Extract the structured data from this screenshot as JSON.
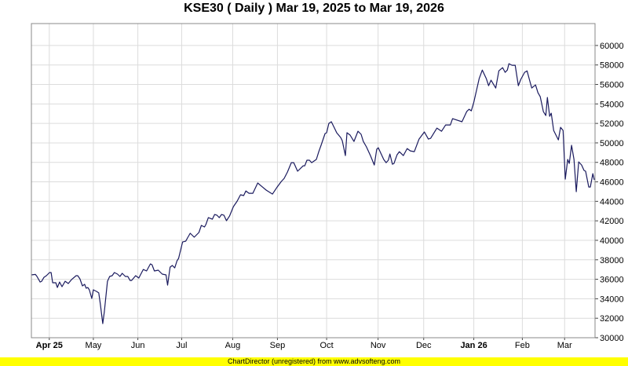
{
  "footer": "ChartDirector (unregistered) from www.advsofteng.com",
  "chart_data": {
    "type": "line",
    "title": "KSE30 ( Daily ) Mar 19, 2025 to Mar 19, 2026",
    "xlabel": "",
    "ylabel": "",
    "x_unit": "trading session index",
    "xlim": [
      0,
      252
    ],
    "ylim": [
      30000,
      62250
    ],
    "y_ticks": [
      30000,
      32000,
      34000,
      36000,
      38000,
      40000,
      42000,
      44000,
      46000,
      48000,
      50000,
      52000,
      54000,
      56000,
      58000,
      60000
    ],
    "y_axis_side": "right",
    "grid": true,
    "line_color": "#1a1a5e",
    "x_ticks": [
      {
        "t": 8,
        "label": "Apr 25",
        "bold": true
      },
      {
        "t": 27.7,
        "label": "May",
        "bold": false
      },
      {
        "t": 47.6,
        "label": "Jun",
        "bold": false
      },
      {
        "t": 67.2,
        "label": "Jul",
        "bold": false
      },
      {
        "t": 90,
        "label": "Aug",
        "bold": false
      },
      {
        "t": 110,
        "label": "Sep",
        "bold": false
      },
      {
        "t": 132,
        "label": "Oct",
        "bold": false
      },
      {
        "t": 155,
        "label": "Nov",
        "bold": false
      },
      {
        "t": 175.4,
        "label": "Dec",
        "bold": false
      },
      {
        "t": 197.8,
        "label": "Jan 26",
        "bold": true
      },
      {
        "t": 219.5,
        "label": "Feb",
        "bold": false
      },
      {
        "t": 238.4,
        "label": "Mar",
        "bold": false
      }
    ],
    "series": [
      {
        "name": "KSE30",
        "points": [
          [
            0,
            36450
          ],
          [
            1.8,
            36500
          ],
          [
            2.5,
            36290
          ],
          [
            3.9,
            35720
          ],
          [
            4.6,
            35800
          ],
          [
            5.6,
            36200
          ],
          [
            6.7,
            36370
          ],
          [
            8.1,
            36690
          ],
          [
            8.8,
            36690
          ],
          [
            9.5,
            35640
          ],
          [
            10.9,
            35640
          ],
          [
            11.6,
            35160
          ],
          [
            12.6,
            35720
          ],
          [
            13.7,
            35240
          ],
          [
            15.1,
            35800
          ],
          [
            16.5,
            35560
          ],
          [
            17.9,
            35960
          ],
          [
            20,
            36370
          ],
          [
            20.7,
            36370
          ],
          [
            21.7,
            36050
          ],
          [
            22.8,
            35320
          ],
          [
            23.8,
            35480
          ],
          [
            24.5,
            35080
          ],
          [
            25.2,
            35160
          ],
          [
            25.9,
            34920
          ],
          [
            27,
            34030
          ],
          [
            27.7,
            34920
          ],
          [
            29.1,
            34760
          ],
          [
            30.1,
            34600
          ],
          [
            30.8,
            33470
          ],
          [
            31.9,
            31450
          ],
          [
            32.6,
            32660
          ],
          [
            34,
            35800
          ],
          [
            35,
            36290
          ],
          [
            36.1,
            36370
          ],
          [
            37.1,
            36690
          ],
          [
            38.5,
            36530
          ],
          [
            39.6,
            36290
          ],
          [
            40.6,
            36610
          ],
          [
            42,
            36290
          ],
          [
            43.1,
            36290
          ],
          [
            44.1,
            35880
          ],
          [
            44.8,
            35880
          ],
          [
            46.6,
            36370
          ],
          [
            48,
            36130
          ],
          [
            50,
            37010
          ],
          [
            51.5,
            36850
          ],
          [
            53.2,
            37580
          ],
          [
            53.9,
            37500
          ],
          [
            55,
            36850
          ],
          [
            56.7,
            36930
          ],
          [
            58.5,
            36530
          ],
          [
            60.2,
            36450
          ],
          [
            60.9,
            35400
          ],
          [
            62,
            37250
          ],
          [
            63,
            37420
          ],
          [
            64.1,
            37170
          ],
          [
            65.1,
            37900
          ],
          [
            65.8,
            38140
          ],
          [
            67.6,
            39830
          ],
          [
            69,
            39910
          ],
          [
            70,
            40320
          ],
          [
            71,
            40720
          ],
          [
            72.8,
            40320
          ],
          [
            74.9,
            40800
          ],
          [
            76,
            41530
          ],
          [
            77.4,
            41370
          ],
          [
            78,
            41610
          ],
          [
            79.1,
            42330
          ],
          [
            80.9,
            42170
          ],
          [
            81.9,
            42650
          ],
          [
            83,
            42570
          ],
          [
            84,
            42330
          ],
          [
            85,
            42650
          ],
          [
            86.1,
            42570
          ],
          [
            87.2,
            42010
          ],
          [
            88.6,
            42490
          ],
          [
            90.3,
            43460
          ],
          [
            92,
            44020
          ],
          [
            93.5,
            44670
          ],
          [
            94.9,
            44590
          ],
          [
            95.9,
            45070
          ],
          [
            97.3,
            44830
          ],
          [
            99,
            44830
          ],
          [
            101.2,
            45880
          ],
          [
            103.3,
            45470
          ],
          [
            105,
            45150
          ],
          [
            107.8,
            44750
          ],
          [
            109.9,
            45470
          ],
          [
            111.7,
            46040
          ],
          [
            113,
            46360
          ],
          [
            114.5,
            47010
          ],
          [
            116.2,
            47970
          ],
          [
            117.3,
            47970
          ],
          [
            119,
            47090
          ],
          [
            121.5,
            47650
          ],
          [
            122.2,
            47650
          ],
          [
            123.2,
            48220
          ],
          [
            124.3,
            48220
          ],
          [
            125.3,
            47970
          ],
          [
            127.4,
            48300
          ],
          [
            128.5,
            49100
          ],
          [
            129.5,
            49750
          ],
          [
            131.3,
            50960
          ],
          [
            132,
            51040
          ],
          [
            133,
            52000
          ],
          [
            134.1,
            52170
          ],
          [
            135.5,
            51520
          ],
          [
            136.5,
            51040
          ],
          [
            138.3,
            50550
          ],
          [
            139,
            50230
          ],
          [
            140.4,
            48700
          ],
          [
            141.1,
            51040
          ],
          [
            142.5,
            50800
          ],
          [
            144.2,
            50150
          ],
          [
            146,
            51200
          ],
          [
            147.4,
            50880
          ],
          [
            148.4,
            50150
          ],
          [
            149.8,
            49590
          ],
          [
            151.6,
            48700
          ],
          [
            153.3,
            47730
          ],
          [
            154.4,
            49340
          ],
          [
            155.1,
            49500
          ],
          [
            157.5,
            48300
          ],
          [
            158.6,
            47970
          ],
          [
            159.6,
            48220
          ],
          [
            160.3,
            48860
          ],
          [
            161.4,
            47810
          ],
          [
            162.1,
            47890
          ],
          [
            163.5,
            48780
          ],
          [
            164.5,
            49100
          ],
          [
            166.3,
            48700
          ],
          [
            168,
            49420
          ],
          [
            169.4,
            49180
          ],
          [
            171.2,
            49100
          ],
          [
            173.3,
            50390
          ],
          [
            175.7,
            51120
          ],
          [
            177.5,
            50390
          ],
          [
            178.5,
            50470
          ],
          [
            181.3,
            51520
          ],
          [
            183.4,
            51200
          ],
          [
            185.2,
            51840
          ],
          [
            187.3,
            51840
          ],
          [
            188.3,
            52490
          ],
          [
            192.5,
            52170
          ],
          [
            194.6,
            53210
          ],
          [
            195.7,
            53450
          ],
          [
            196.7,
            53290
          ],
          [
            197.8,
            54180
          ],
          [
            200.2,
            56600
          ],
          [
            201.6,
            57480
          ],
          [
            203.4,
            56600
          ],
          [
            204.4,
            55870
          ],
          [
            205.5,
            56440
          ],
          [
            207.6,
            55630
          ],
          [
            209,
            57400
          ],
          [
            210.7,
            57730
          ],
          [
            211.8,
            57240
          ],
          [
            212.8,
            57480
          ],
          [
            213.5,
            58130
          ],
          [
            214.9,
            57970
          ],
          [
            216.3,
            57970
          ],
          [
            217.7,
            55870
          ],
          [
            218.8,
            56520
          ],
          [
            220.5,
            57240
          ],
          [
            221.6,
            57400
          ],
          [
            223,
            56200
          ],
          [
            223.7,
            55630
          ],
          [
            225.4,
            55950
          ],
          [
            226.5,
            55150
          ],
          [
            227.5,
            54740
          ],
          [
            228.9,
            53210
          ],
          [
            230,
            52810
          ],
          [
            230.7,
            54660
          ],
          [
            231.7,
            52730
          ],
          [
            232.4,
            53050
          ],
          [
            233.5,
            51280
          ],
          [
            235.6,
            50310
          ],
          [
            236.6,
            51600
          ],
          [
            237.7,
            51280
          ],
          [
            238.7,
            46280
          ],
          [
            239.8,
            48300
          ],
          [
            240.5,
            47890
          ],
          [
            241.5,
            49750
          ],
          [
            242.6,
            48300
          ],
          [
            243.6,
            44990
          ],
          [
            244.7,
            48050
          ],
          [
            246,
            47730
          ],
          [
            247.1,
            47170
          ],
          [
            247.8,
            47090
          ],
          [
            249.2,
            45470
          ],
          [
            249.9,
            45470
          ],
          [
            251,
            46840
          ],
          [
            251.7,
            46200
          ]
        ]
      }
    ]
  }
}
